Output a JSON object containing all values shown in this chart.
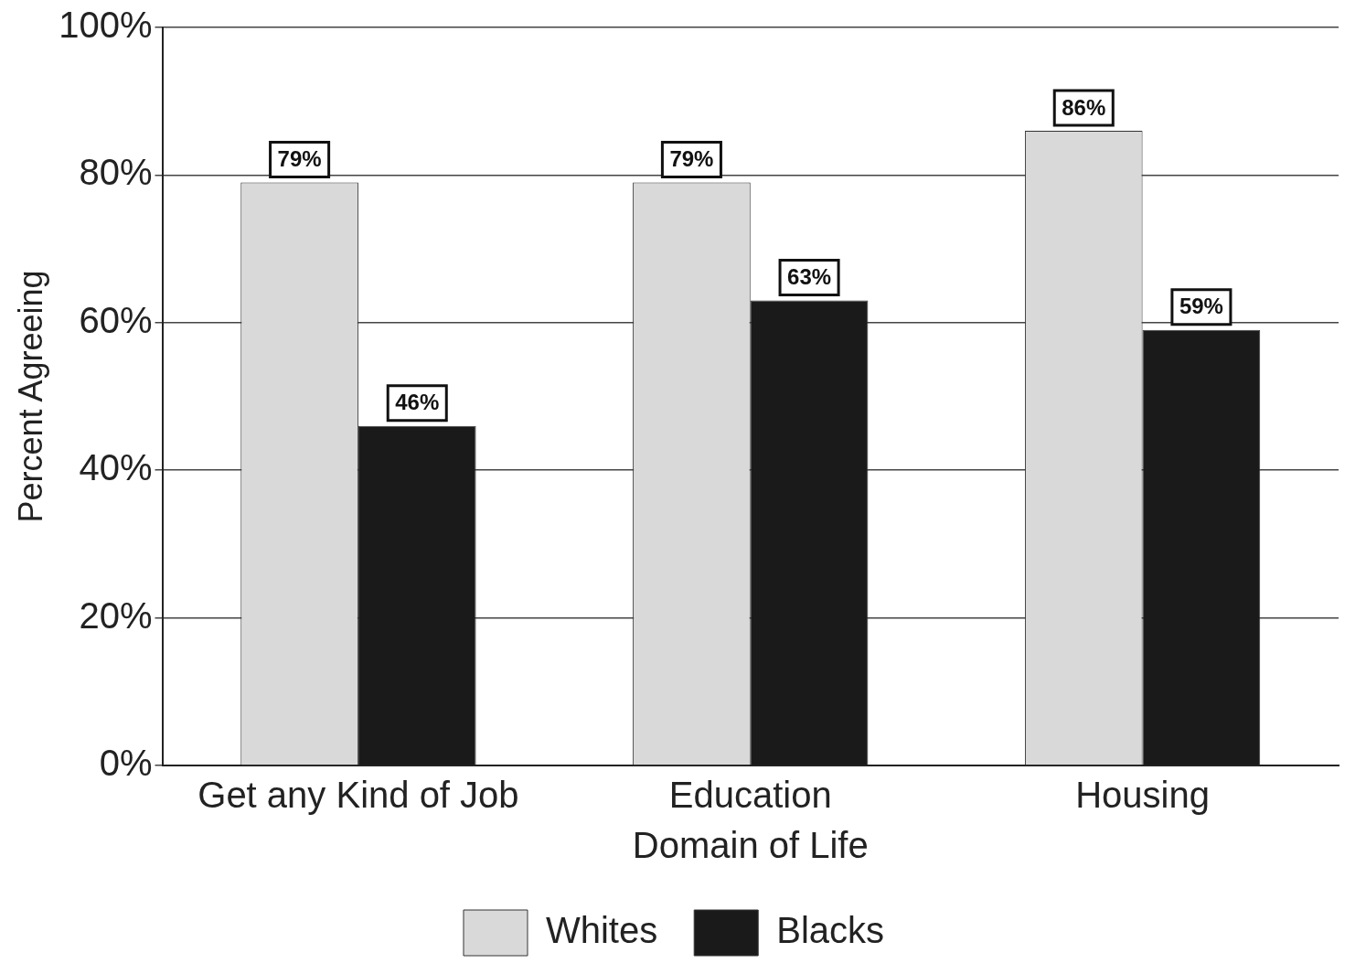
{
  "chart_data": {
    "type": "bar",
    "xlabel": "Domain of Life",
    "ylabel": "Percent Agreeing",
    "categories": [
      "Get any Kind of Job",
      "Education",
      "Housing"
    ],
    "series": [
      {
        "name": "Whites",
        "color": "#d9d9d9",
        "values": [
          79,
          79,
          86
        ],
        "value_labels": [
          "79%",
          "79%",
          "86%"
        ]
      },
      {
        "name": "Blacks",
        "color": "#1a1a1a",
        "values": [
          46,
          63,
          59
        ],
        "value_labels": [
          "46%",
          "63%",
          "59%"
        ]
      }
    ],
    "ylim": [
      0,
      100
    ],
    "yticks": [
      {
        "value": 0,
        "label": "0%"
      },
      {
        "value": 20,
        "label": "20%"
      },
      {
        "value": 40,
        "label": "40%"
      },
      {
        "value": 60,
        "label": "60%"
      },
      {
        "value": 80,
        "label": "80%"
      },
      {
        "value": 100,
        "label": "100%"
      }
    ],
    "grid": "y",
    "legend": "bottom"
  }
}
